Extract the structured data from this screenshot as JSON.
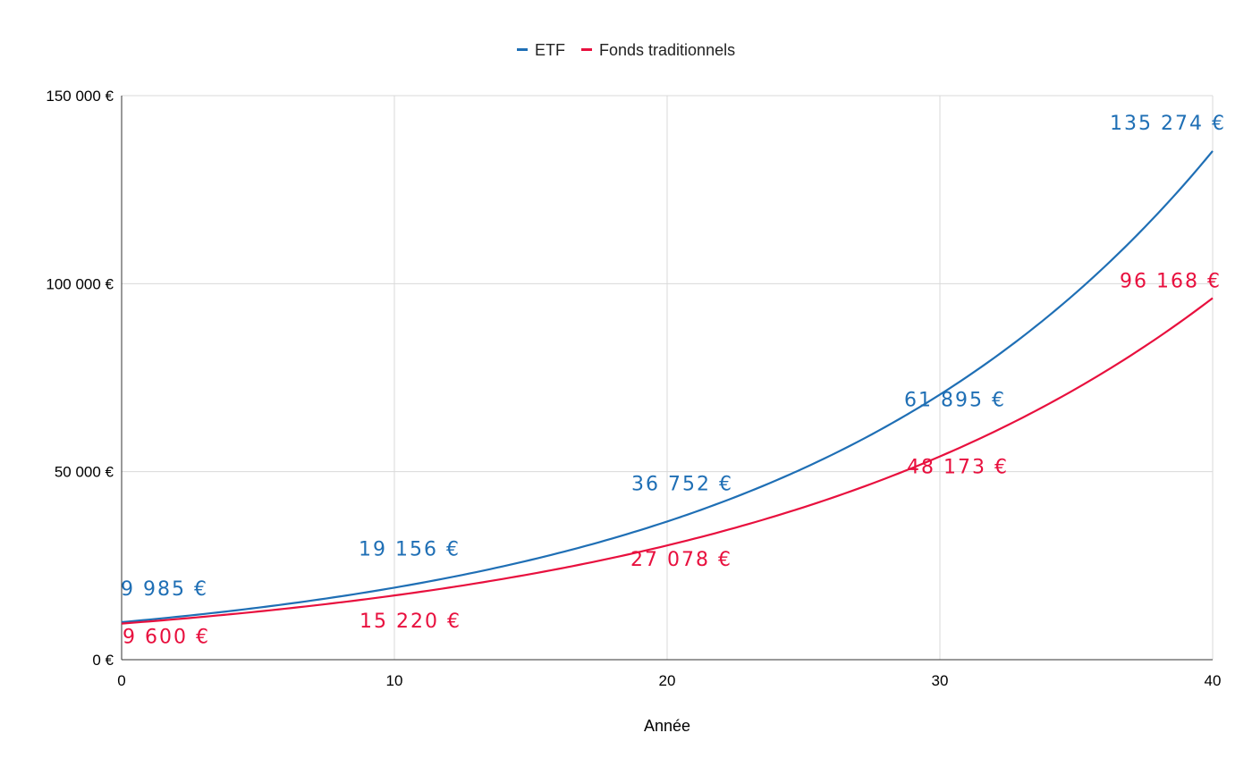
{
  "chart_data": {
    "type": "line",
    "title": "",
    "xlabel": "Année",
    "ylabel": "",
    "xlim": [
      0,
      40
    ],
    "ylim": [
      0,
      150000
    ],
    "x_ticks": [
      0,
      10,
      20,
      30,
      40
    ],
    "x_tick_labels": [
      "0",
      "10",
      "20",
      "30",
      "40"
    ],
    "y_ticks": [
      0,
      50000,
      100000,
      150000
    ],
    "y_tick_labels": [
      "0 €",
      "50 000 €",
      "100 000 €",
      "150 000 €"
    ],
    "grid": true,
    "legend_position": "top-center",
    "series": [
      {
        "name": "ETF",
        "color": "#1f6fb5",
        "start": 9985,
        "end": 135274,
        "labels": [
          {
            "x": 0,
            "value": 9985,
            "text": "9 985 €"
          },
          {
            "x": 10,
            "value": 19156,
            "text": "19 156 €"
          },
          {
            "x": 20,
            "value": 36752,
            "text": "36 752 €"
          },
          {
            "x": 30,
            "value": 61895,
            "text": "61 895 €"
          },
          {
            "x": 40,
            "value": 135274,
            "text": "135 274 €"
          }
        ]
      },
      {
        "name": "Fonds traditionnels",
        "color": "#e8103e",
        "start": 9600,
        "end": 96168,
        "labels": [
          {
            "x": 0,
            "value": 9600,
            "text": "9 600 €"
          },
          {
            "x": 10,
            "value": 15220,
            "text": "15 220 €"
          },
          {
            "x": 20,
            "value": 27078,
            "text": "27 078 €"
          },
          {
            "x": 30,
            "value": 48173,
            "text": "48 173 €"
          },
          {
            "x": 40,
            "value": 96168,
            "text": "96 168 €"
          }
        ]
      }
    ]
  }
}
